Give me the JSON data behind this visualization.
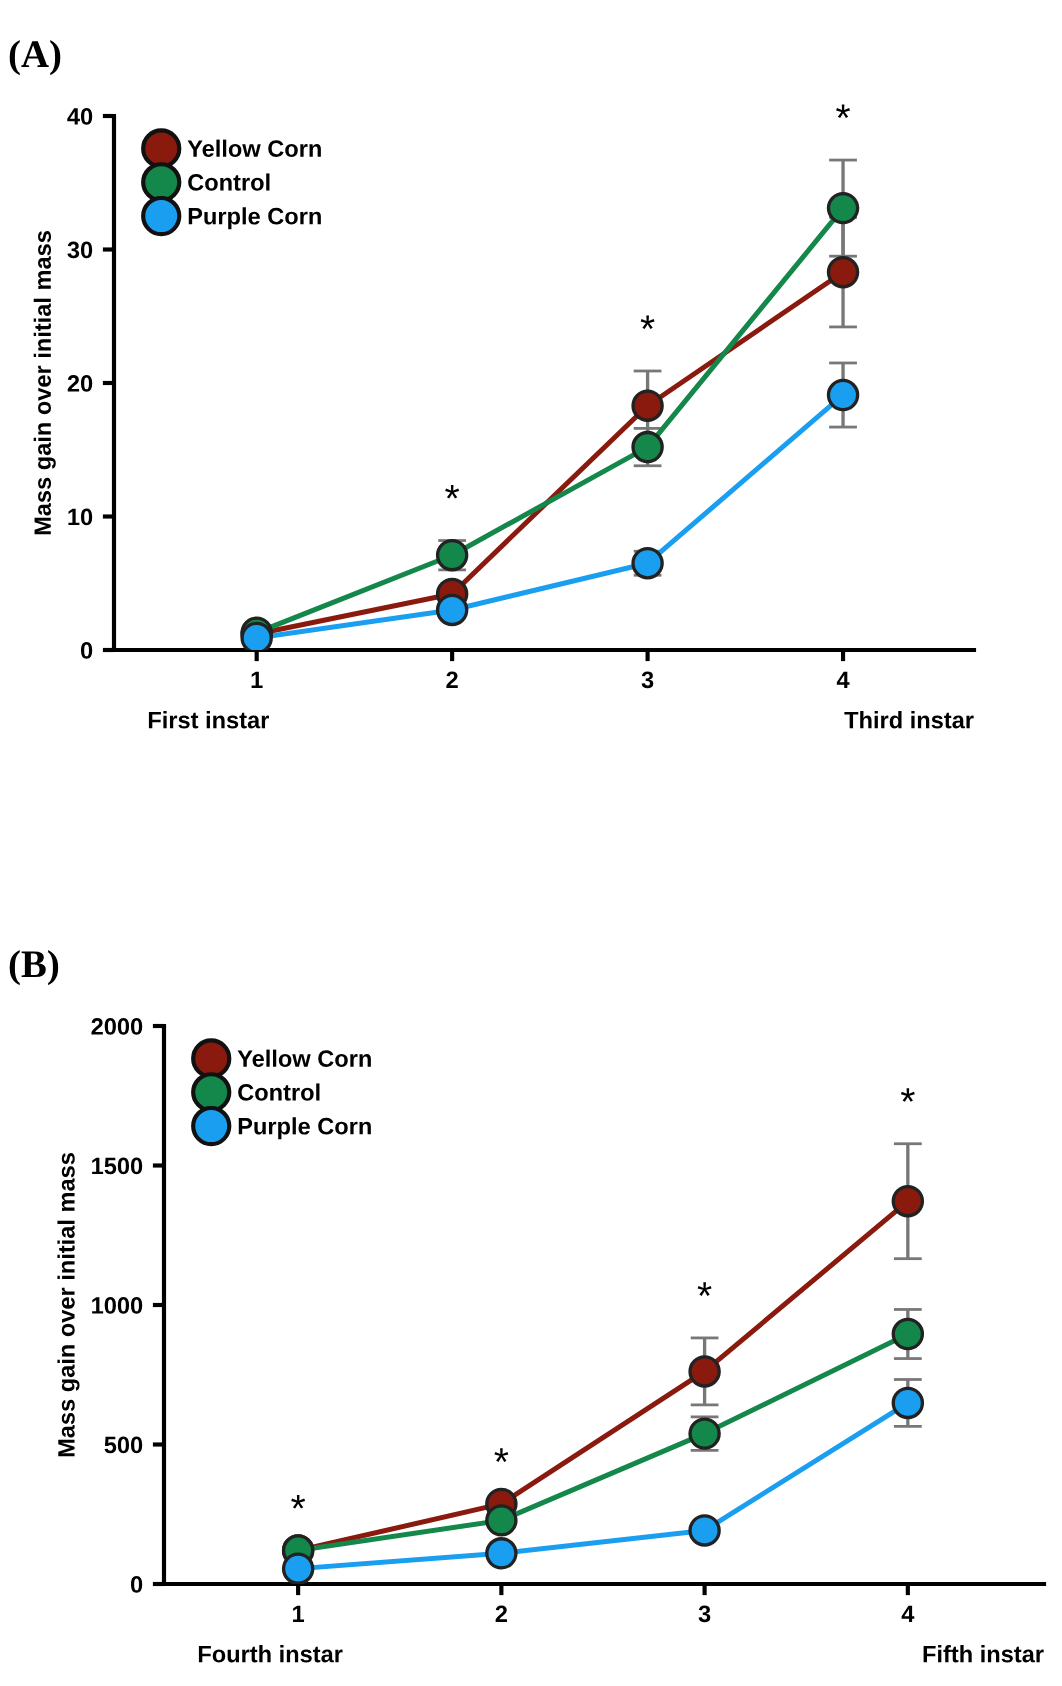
{
  "chart_data": [
    {
      "type": "line",
      "title": "(A)",
      "ylabel": "Mass gain over initial mass",
      "x": [
        1,
        2,
        3,
        4
      ],
      "xlim": [
        0.27,
        4.67
      ],
      "xticks": [
        1,
        2,
        3,
        4
      ],
      "ylim": [
        0,
        40
      ],
      "yticks": [
        0,
        10,
        20,
        30,
        40
      ],
      "marker": "circle",
      "legend": "top left",
      "grid": false,
      "series": [
        {
          "name": "Yellow Corn",
          "color": "#8b1a0e",
          "values": [
            1.2,
            4.2,
            18.3,
            28.3
          ],
          "errors": [
            null,
            null,
            2.6,
            4.1
          ]
        },
        {
          "name": "Control",
          "color": "#14874a",
          "values": [
            1.3,
            7.1,
            15.2,
            33.1
          ],
          "errors": [
            null,
            1.1,
            1.4,
            3.6
          ]
        },
        {
          "name": "Purple Corn",
          "color": "#1a9ff0",
          "values": [
            0.9,
            3.0,
            6.5,
            19.1
          ],
          "errors": [
            null,
            null,
            0.9,
            2.4
          ]
        }
      ],
      "annotations": [
        "*",
        "*",
        "*",
        "First instar",
        "Third instar"
      ]
    },
    {
      "type": "line",
      "title": "(B)",
      "ylabel": "Mass gain over initial mass",
      "x": [
        1,
        2,
        3,
        4
      ],
      "xlim": [
        0.34,
        4.67
      ],
      "xticks": [
        1,
        2,
        3,
        4
      ],
      "ylim": [
        0,
        2000
      ],
      "yticks": [
        0,
        500,
        1000,
        1500,
        2000
      ],
      "marker": "circle",
      "legend": "top left",
      "grid": false,
      "series": [
        {
          "name": "Yellow Corn",
          "color": "#8b1a0e",
          "values": [
            120,
            287,
            762,
            1372
          ],
          "errors": [
            null,
            null,
            120,
            206
          ]
        },
        {
          "name": "Control",
          "color": "#14874a",
          "values": [
            120,
            228,
            539,
            896
          ],
          "errors": [
            null,
            null,
            60,
            88
          ]
        },
        {
          "name": "Purple Corn",
          "color": "#1a9ff0",
          "values": [
            55,
            110,
            192,
            649
          ],
          "errors": [
            null,
            null,
            null,
            84
          ]
        }
      ],
      "annotations": [
        "*",
        "*",
        "*",
        "*",
        "Fourth instar",
        "Fifth instar"
      ]
    }
  ]
}
